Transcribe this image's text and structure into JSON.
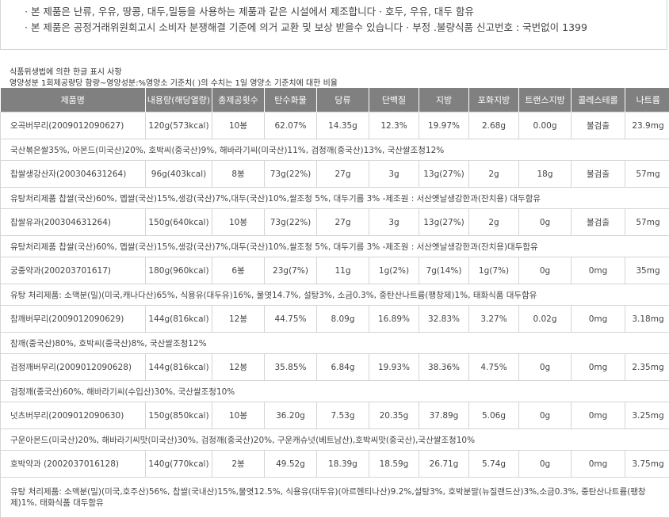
{
  "notice": {
    "line1": "· 본 제품은 난류, 우유, 땅콩, 대두,밀등을 사용하는 제품과 같은 시설에서 제조합니다   · 호두, 우유, 대두 함유",
    "line2": "· 본 제품은 공정거래위원회고시 소비자 분쟁해결 기준에 의거 교환 및 보상 받을수 있습니다   · 부정 .불량식품 신고번호 : 국번없이 1399"
  },
  "section": {
    "title": "식품위생법에 의한 한글 표시 사항",
    "subtitle": "영양성분 1회제공량당 함량~영양성분:%영양소 기준치( )의 수치는 1일 영양소 기준치에 대한 비율"
  },
  "table": {
    "headers": [
      "제품명",
      "내용량(해당열량)",
      "총제공횟수",
      "탄수화물",
      "당류",
      "단백질",
      "지방",
      "포화지방",
      "트랜스지방",
      "콜레스테롤",
      "나트륨"
    ],
    "products": [
      {
        "cells": [
          "오곡버무리(2009012090627)",
          "120g(573kcal)",
          "10봉",
          "62.07%",
          "14.35g",
          "12.3%",
          "19.97%",
          "2.68g",
          "0.00g",
          "불검출",
          "23.9mg"
        ],
        "ingredients": "국산볶은쌀35%, 아몬드(미국산)20%, 호박씨(중국산)9%, 해바라기씨(미국산)11%, 검정깨(중국산)13%, 국산쌀조청12%"
      },
      {
        "cells": [
          "찹쌀생강산자(200304631264)",
          "96g(403kcal)",
          "8봉",
          "73g(22%)",
          "27g",
          "3g",
          "13g(27%)",
          "2g",
          "18g",
          "불검출",
          "57mg"
        ],
        "ingredients": "유탕처리제품 찹쌀(국산)60%, 멥쌀(국산)15%,생강(국산)7%,대두(국산)10%,쌀조청 5%, 대두기름 3% -제조원 : 서산옛날생강한과(잔치용) 대두함유"
      },
      {
        "cells": [
          "찹쌀유과(200304631264)",
          "150g(640kcal)",
          "10봉",
          "73g(22%)",
          "27g",
          "3g",
          "13g(27%)",
          "2g",
          "0g",
          "불검출",
          "57mg"
        ],
        "ingredients": "유탕처리제품 찹쌀(국산)60%, 멥쌀(국산)15%,생강(국산)7%,대두(국산)10%,쌀조청 5%, 대두기름 3% -제조원 : 서산옛날생강한과(잔치용)대두함유"
      },
      {
        "cells": [
          "궁중약과(200203701617)",
          "180g(960kcal)",
          "6봉",
          "23g(7%)",
          "11g",
          "1g(2%)",
          "7g(14%)",
          "1g(7%)",
          "0g",
          "0mg",
          "35mg"
        ],
        "ingredients": "유탕 처리제품: 소맥분(밀)(미국,캐나다산)65%, 식용유(대두유)16%, 물엿14.7%, 설탕3%, 소금0.3%, 중탄산나트륨(팽창제)1%, 태화식품   대두함유"
      },
      {
        "cells": [
          "참깨버무리(2009012090629)",
          "144g(816kcal)",
          "12봉",
          "44.75%",
          "8.09g",
          "16.89%",
          "32.83%",
          "3.27%",
          "0.02g",
          "0mg",
          "3.18mg"
        ],
        "ingredients": "참깨(중국산)80%, 호박씨(중국산)8%, 국산쌀조청12%"
      },
      {
        "cells": [
          "검정깨버무리(2009012090628)",
          "144g(816kcal)",
          "12봉",
          "35.85%",
          "6.84g",
          "19.93%",
          "38.36%",
          "4.75%",
          "0g",
          "0mg",
          "2.35mg"
        ],
        "ingredients": "검정깨(중국산)60%, 해바라기씨(수입산)30%, 국산쌀조청10%"
      },
      {
        "cells": [
          "넛츠버무리(2009012090630)",
          "150g(850kcal)",
          "10봉",
          "36.20g",
          "7.53g",
          "20.35g",
          "37.89g",
          "5.06g",
          "0g",
          "0mg",
          "3.25mg"
        ],
        "ingredients": "구운아몬드(미국산)20%, 해바라기씨맛(미국산)30%, 검정깨(중국산)20%, 구운캐슈넛(베트남산),호박씨맛(중국산),국산쌀조청10%"
      },
      {
        "cells": [
          "호박약과 (2002037016128)",
          "140g(770kcal)",
          "2봉",
          "49.52g",
          "18.39g",
          "18.59g",
          "26.71g",
          "5.74g",
          "0g",
          "0mg",
          "3.75mg"
        ],
        "ingredients": "유탕 처리제품: 소맥분(밀)(미국,호주산)56%, 찹쌀(국내산)15%,물엿12.5%, 식용유(대두유)(아르헨티나산)9.2%,설탕3%, 호박분말(뉴질랜드산)3%,소금0.3%, 중탄산나트륨(팽창제)1%, 태화식품   대두함유"
      }
    ]
  }
}
